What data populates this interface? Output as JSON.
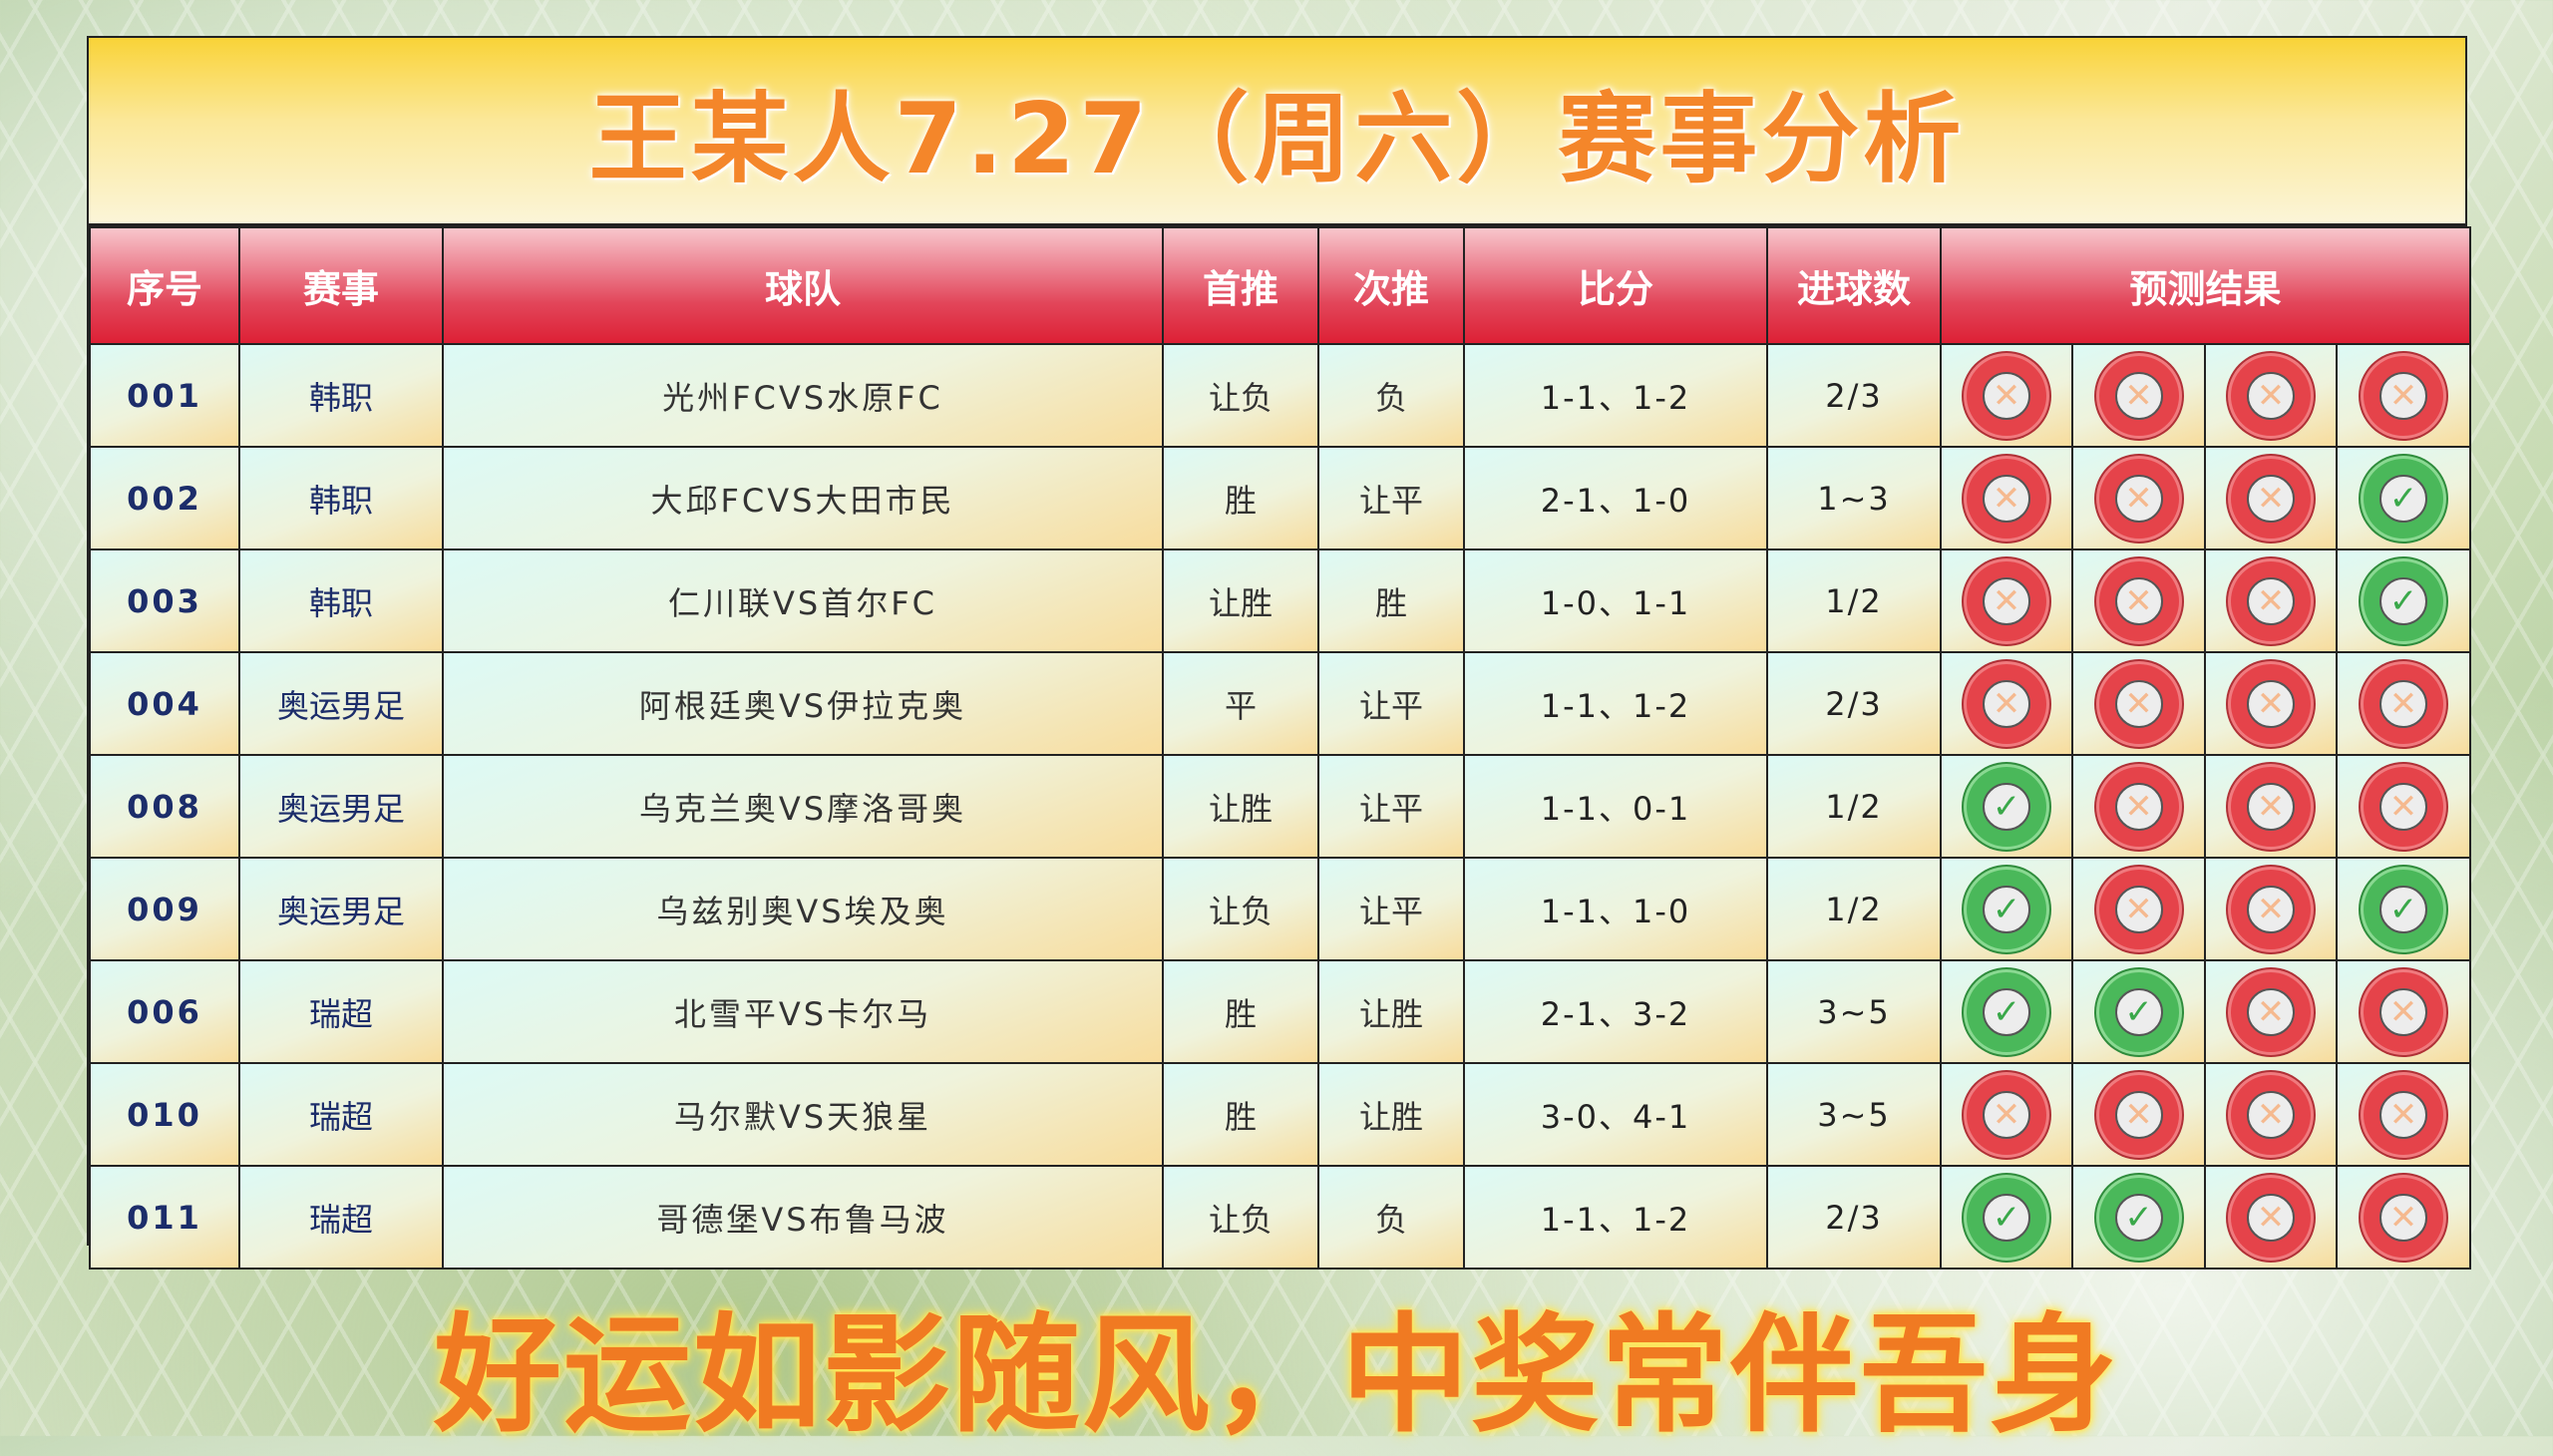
{
  "title": "王某人7.27（周六）赛事分析",
  "headers": [
    "序号",
    "赛事",
    "球队",
    "首推",
    "次推",
    "比分",
    "进球数",
    "预测结果"
  ],
  "rows": [
    {
      "seq": "001",
      "league": "韩职",
      "teams": "光州FCVS水原FC",
      "first": "让负",
      "second": "负",
      "score": "1-1、1-2",
      "goals": "2/3",
      "results": [
        "cross",
        "cross",
        "cross",
        "cross"
      ]
    },
    {
      "seq": "002",
      "league": "韩职",
      "teams": "大邱FCVS大田市民",
      "first": "胜",
      "second": "让平",
      "score": "2-1、1-0",
      "goals": "1~3",
      "results": [
        "cross",
        "cross",
        "cross",
        "check"
      ]
    },
    {
      "seq": "003",
      "league": "韩职",
      "teams": "仁川联VS首尔FC",
      "first": "让胜",
      "second": "胜",
      "score": "1-0、1-1",
      "goals": "1/2",
      "results": [
        "cross",
        "cross",
        "cross",
        "check"
      ]
    },
    {
      "seq": "004",
      "league": "奥运男足",
      "teams": "阿根廷奥VS伊拉克奥",
      "first": "平",
      "second": "让平",
      "score": "1-1、1-2",
      "goals": "2/3",
      "results": [
        "cross",
        "cross",
        "cross",
        "cross"
      ]
    },
    {
      "seq": "008",
      "league": "奥运男足",
      "teams": "乌克兰奥VS摩洛哥奥",
      "first": "让胜",
      "second": "让平",
      "score": "1-1、0-1",
      "goals": "1/2",
      "results": [
        "check",
        "cross",
        "cross",
        "cross"
      ]
    },
    {
      "seq": "009",
      "league": "奥运男足",
      "teams": "乌兹别奥VS埃及奥",
      "first": "让负",
      "second": "让平",
      "score": "1-1、1-0",
      "goals": "1/2",
      "results": [
        "check",
        "cross",
        "cross",
        "check"
      ]
    },
    {
      "seq": "006",
      "league": "瑞超",
      "teams": "北雪平VS卡尔马",
      "first": "胜",
      "second": "让胜",
      "score": "2-1、3-2",
      "goals": "3~5",
      "results": [
        "check",
        "check",
        "cross",
        "cross"
      ]
    },
    {
      "seq": "010",
      "league": "瑞超",
      "teams": "马尔默VS天狼星",
      "first": "胜",
      "second": "让胜",
      "score": "3-0、4-1",
      "goals": "3~5",
      "results": [
        "cross",
        "cross",
        "cross",
        "cross"
      ]
    },
    {
      "seq": "011",
      "league": "瑞超",
      "teams": "哥德堡VS布鲁马波",
      "first": "让负",
      "second": "负",
      "score": "1-1、1-2",
      "goals": "2/3",
      "results": [
        "check",
        "check",
        "cross",
        "cross"
      ]
    }
  ],
  "slogan": "好运如影随风，中奖常伴吾身",
  "colors": {
    "header_red": "#dd2035",
    "title_orange": "#f4862a",
    "check_green": "#4ab85a",
    "cross_red": "#e5434a"
  }
}
